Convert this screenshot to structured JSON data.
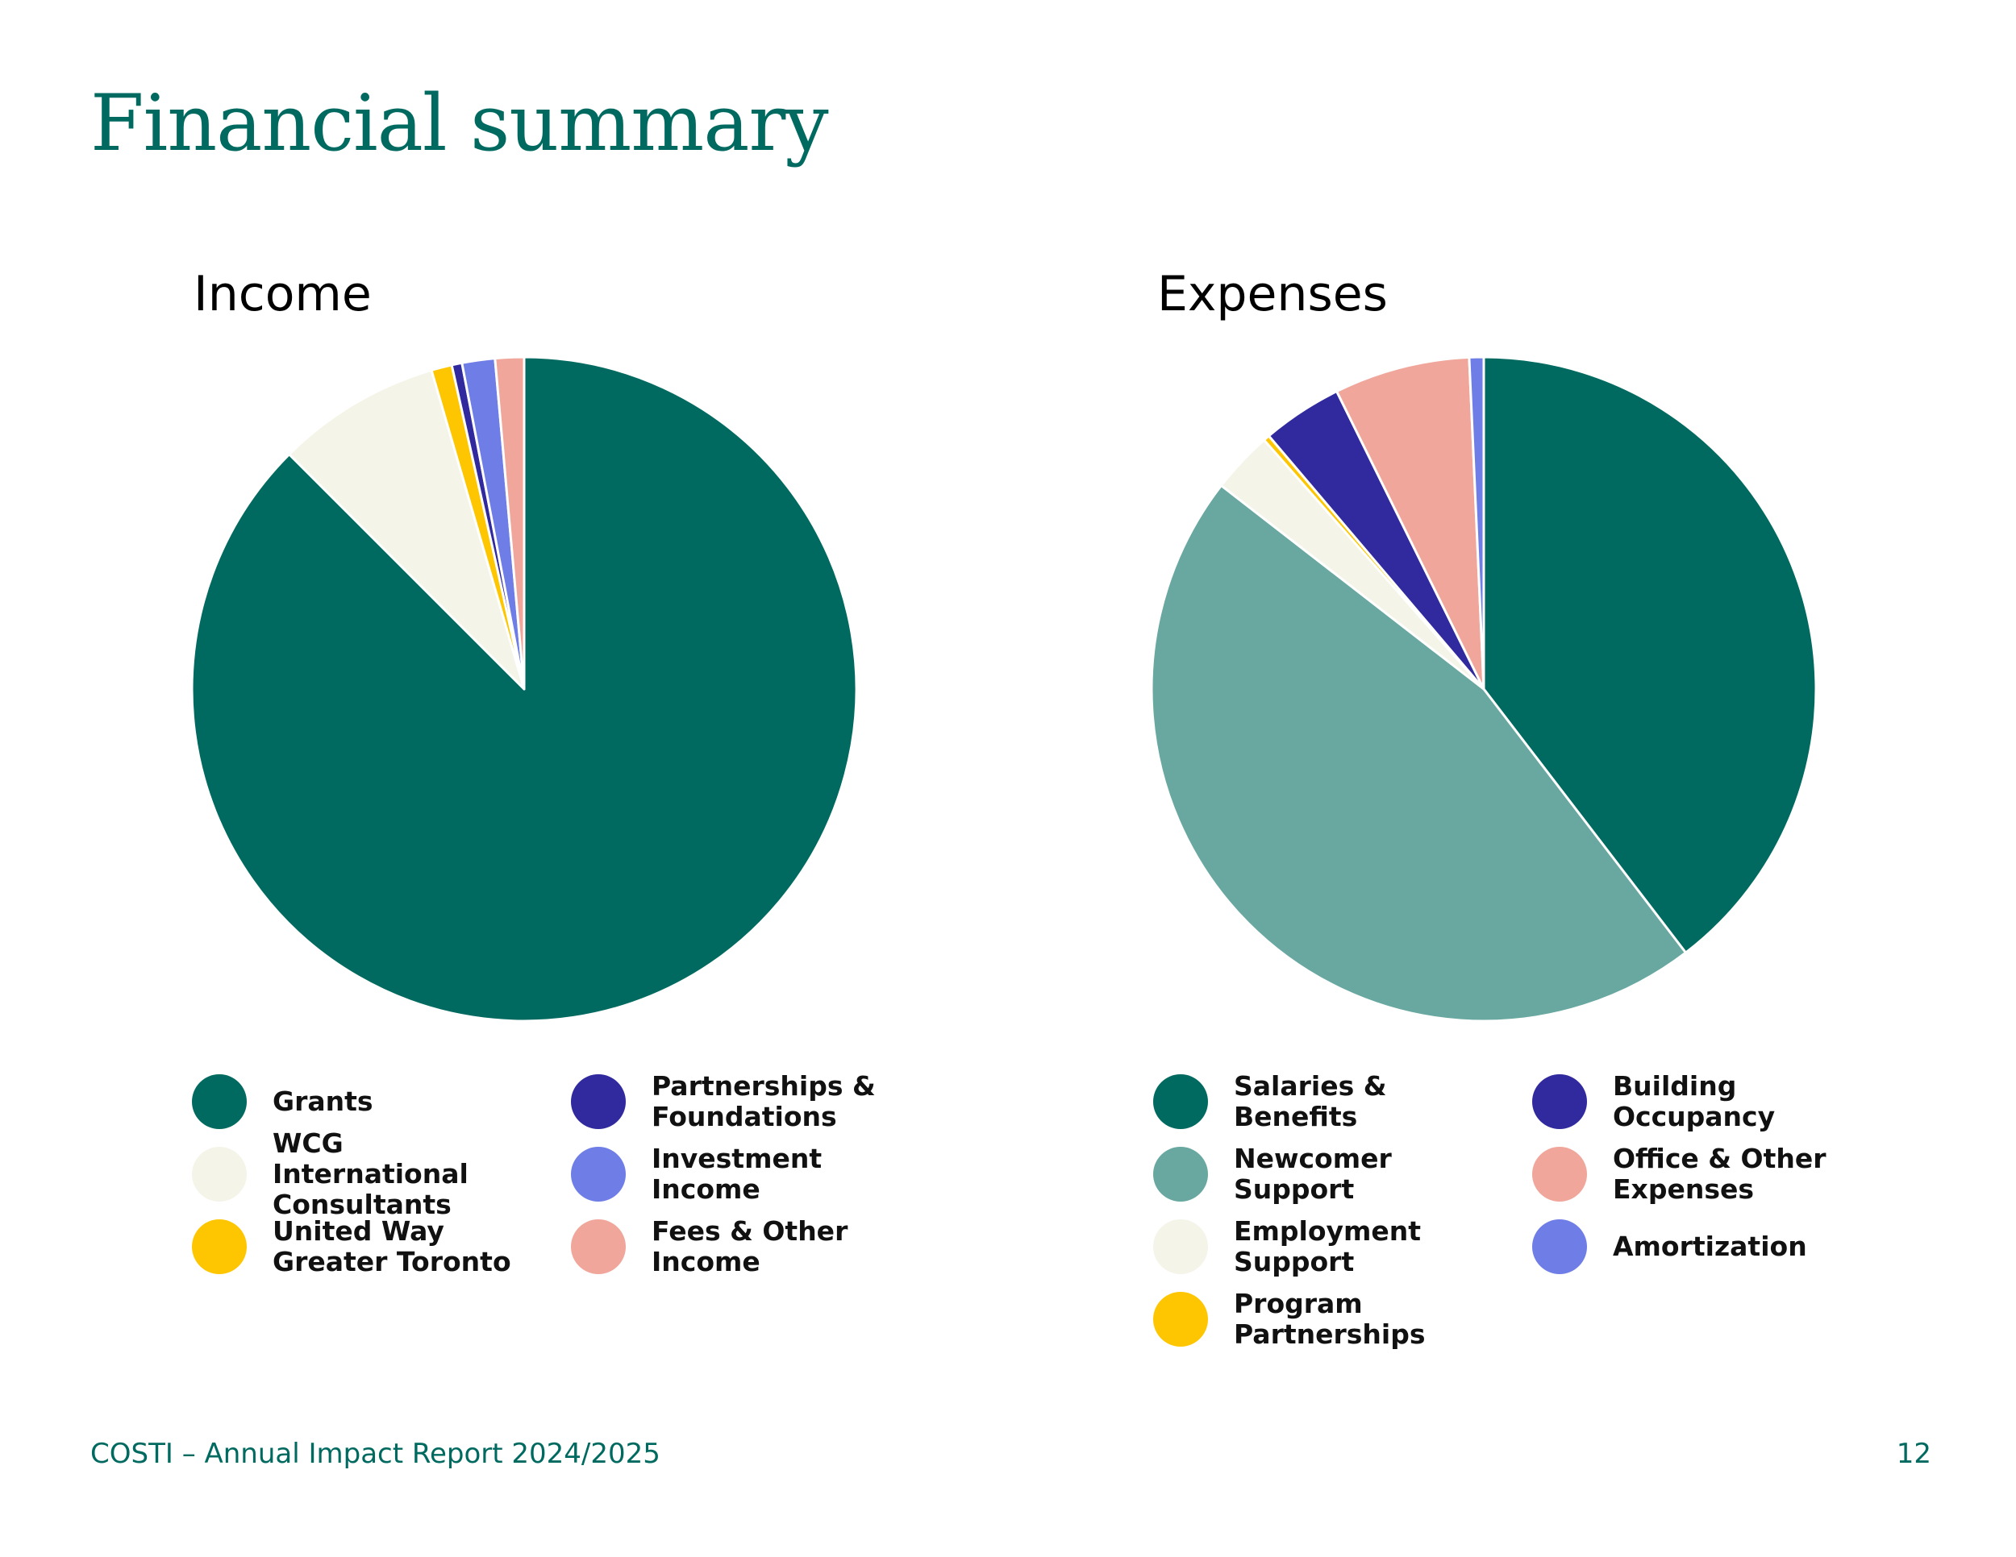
{
  "page": {
    "title": "Financial summary",
    "footer_text": "COSTI – Annual Impact Report 2024/2025",
    "page_number": "12"
  },
  "colors": {
    "title": "#006a60",
    "dark_green": "#006a60",
    "teal": "#68a8a0",
    "cream": "#f5f4e8",
    "yellow": "#fdc600",
    "navy": "#302a9e",
    "periwinkle": "#6f7de6",
    "salmon": "#f0a69a"
  },
  "chart_data": [
    {
      "type": "pie",
      "title": "Income",
      "slices": [
        {
          "label": "Grants",
          "value": 87.5,
          "color": "#006a60"
        },
        {
          "label": "WCG International Consultants",
          "value": 8.0,
          "color": "#f5f4e8"
        },
        {
          "label": "United Way Greater Toronto",
          "value": 1.0,
          "color": "#fdc600"
        },
        {
          "label": "Partnerships & Foundations",
          "value": 0.5,
          "color": "#302a9e"
        },
        {
          "label": "Investment Income",
          "value": 1.6,
          "color": "#6f7de6"
        },
        {
          "label": "Fees & Other Income",
          "value": 1.4,
          "color": "#f0a69a"
        }
      ],
      "legend_columns": [
        [
          "Grants",
          "WCG International Consultants",
          "United Way Greater Toronto"
        ],
        [
          "Partnerships & Foundations",
          "Investment Income",
          "Fees & Other Income"
        ]
      ]
    },
    {
      "type": "pie",
      "title": "Expenses",
      "slices": [
        {
          "label": "Salaries & Benefits",
          "value": 39.6,
          "color": "#006a60"
        },
        {
          "label": "Newcomer Support",
          "value": 45.9,
          "color": "#68a8a0"
        },
        {
          "label": "Employment Support",
          "value": 3.0,
          "color": "#f5f4e8"
        },
        {
          "label": "Program Partnerships",
          "value": 0.3,
          "color": "#fdc600"
        },
        {
          "label": "Building Occupancy",
          "value": 3.9,
          "color": "#302a9e"
        },
        {
          "label": "Office & Other Expenses",
          "value": 6.6,
          "color": "#f0a69a"
        },
        {
          "label": "Amortization",
          "value": 0.7,
          "color": "#6f7de6"
        }
      ],
      "legend_columns": [
        [
          "Salaries & Benefits",
          "Newcomer Support",
          "Employment Support",
          "Program Partnerships"
        ],
        [
          "Building Occupancy",
          "Office & Other Expenses",
          "Amortization"
        ]
      ]
    }
  ]
}
